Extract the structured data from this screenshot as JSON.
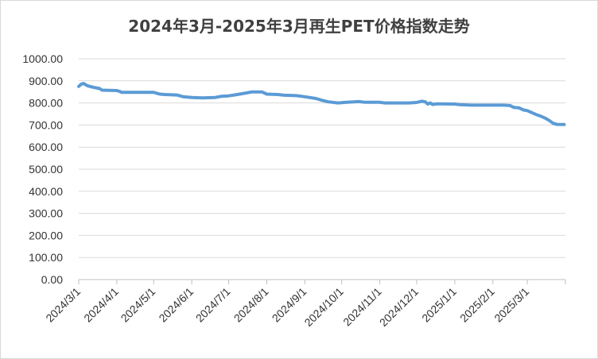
{
  "chart_data": {
    "type": "line",
    "title": "2024年3月-2025年3月再生PET价格指数走势",
    "xlabel": "",
    "ylabel": "",
    "ylim": [
      0,
      1000
    ],
    "grid": "horizontal",
    "legend": "none",
    "line_color": "#5b9bd5",
    "y_ticks": [
      "0.00",
      "100.00",
      "200.00",
      "300.00",
      "400.00",
      "500.00",
      "600.00",
      "700.00",
      "800.00",
      "900.00",
      "1000.00"
    ],
    "x_ticks": [
      "2024/3/1",
      "2024/4/1",
      "2024/5/1",
      "2024/6/1",
      "2024/7/1",
      "2024/8/1",
      "2024/9/1",
      "2024/10/1",
      "2024/11/1",
      "2024/12/1",
      "2025/1/1",
      "2025/2/1",
      "2025/3/1"
    ],
    "series": [
      {
        "points": [
          [
            "2024/3/1",
            875
          ],
          [
            "2024/3/3",
            885
          ],
          [
            "2024/3/5",
            888
          ],
          [
            "2024/3/8",
            878
          ],
          [
            "2024/3/12",
            872
          ],
          [
            "2024/3/18",
            865
          ],
          [
            "2024/3/20",
            858
          ],
          [
            "2024/4/1",
            856
          ],
          [
            "2024/4/3",
            853
          ],
          [
            "2024/4/5",
            848
          ],
          [
            "2024/4/15",
            848
          ],
          [
            "2024/5/1",
            848
          ],
          [
            "2024/5/6",
            840
          ],
          [
            "2024/5/10",
            838
          ],
          [
            "2024/5/20",
            836
          ],
          [
            "2024/5/25",
            828
          ],
          [
            "2024/6/1",
            825
          ],
          [
            "2024/6/10",
            823
          ],
          [
            "2024/6/20",
            825
          ],
          [
            "2024/6/25",
            830
          ],
          [
            "2024/7/1",
            832
          ],
          [
            "2024/7/8",
            838
          ],
          [
            "2024/7/15",
            845
          ],
          [
            "2024/7/20",
            850
          ],
          [
            "2024/7/28",
            850
          ],
          [
            "2024/8/1",
            840
          ],
          [
            "2024/8/10",
            838
          ],
          [
            "2024/8/15",
            835
          ],
          [
            "2024/8/25",
            833
          ],
          [
            "2024/9/1",
            828
          ],
          [
            "2024/9/10",
            820
          ],
          [
            "2024/9/15",
            812
          ],
          [
            "2024/9/20",
            805
          ],
          [
            "2024/9/28",
            800
          ],
          [
            "2024/10/5",
            803
          ],
          [
            "2024/10/15",
            806
          ],
          [
            "2024/10/20",
            803
          ],
          [
            "2024/11/1",
            803
          ],
          [
            "2024/11/5",
            800
          ],
          [
            "2024/11/15",
            800
          ],
          [
            "2024/11/25",
            800
          ],
          [
            "2024/12/1",
            802
          ],
          [
            "2024/12/5",
            808
          ],
          [
            "2024/12/8",
            805
          ],
          [
            "2024/12/10",
            795
          ],
          [
            "2024/12/12",
            800
          ],
          [
            "2024/12/14",
            793
          ],
          [
            "2024/12/18",
            796
          ],
          [
            "2025/1/1",
            795
          ],
          [
            "2025/1/5",
            792
          ],
          [
            "2025/1/15",
            790
          ],
          [
            "2025/1/25",
            790
          ],
          [
            "2025/2/1",
            790
          ],
          [
            "2025/2/10",
            790
          ],
          [
            "2025/2/15",
            788
          ],
          [
            "2025/2/18",
            780
          ],
          [
            "2025/2/22",
            778
          ],
          [
            "2025/2/26",
            768
          ],
          [
            "2025/3/1",
            765
          ],
          [
            "2025/3/3",
            760
          ],
          [
            "2025/3/8",
            748
          ],
          [
            "2025/3/12",
            740
          ],
          [
            "2025/3/16",
            730
          ],
          [
            "2025/3/19",
            720
          ],
          [
            "2025/3/22",
            708
          ],
          [
            "2025/3/25",
            703
          ],
          [
            "2025/3/31",
            702
          ]
        ]
      }
    ]
  }
}
